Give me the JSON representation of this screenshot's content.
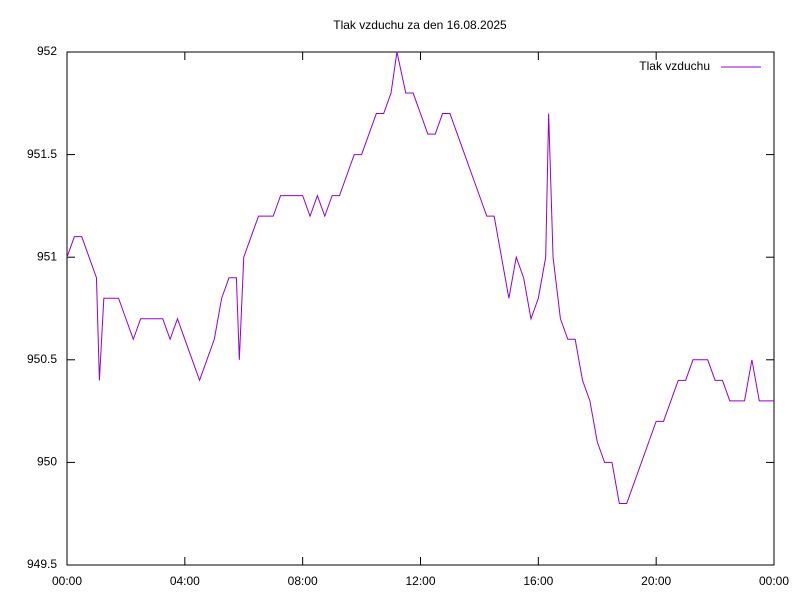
{
  "chart_data": {
    "type": "line",
    "title": "Tlak vzduchu za den 16.08.2025",
    "x": [
      0,
      0.25,
      0.5,
      0.75,
      1.0,
      1.1,
      1.25,
      1.5,
      1.75,
      2.0,
      2.25,
      2.5,
      2.75,
      3.0,
      3.25,
      3.5,
      3.75,
      4.0,
      4.25,
      4.5,
      4.75,
      5.0,
      5.25,
      5.5,
      5.75,
      5.85,
      6.0,
      6.25,
      6.5,
      6.75,
      7.0,
      7.25,
      7.5,
      7.75,
      8.0,
      8.25,
      8.5,
      8.75,
      9.0,
      9.25,
      9.5,
      9.75,
      10.0,
      10.25,
      10.5,
      10.75,
      11.0,
      11.2,
      11.5,
      11.75,
      12.0,
      12.25,
      12.5,
      12.75,
      13.0,
      13.25,
      13.5,
      13.75,
      14.0,
      14.25,
      14.5,
      14.75,
      15.0,
      15.25,
      15.5,
      15.75,
      16.0,
      16.25,
      16.35,
      16.5,
      16.75,
      17.0,
      17.25,
      17.5,
      17.75,
      18.0,
      18.25,
      18.5,
      18.75,
      19.0,
      19.25,
      19.5,
      19.75,
      20.0,
      20.25,
      20.5,
      20.75,
      21.0,
      21.25,
      21.5,
      21.75,
      22.0,
      22.25,
      22.5,
      22.75,
      23.0,
      23.25,
      23.5,
      23.75,
      24.0
    ],
    "series": [
      {
        "name": "Tlak vzduchu",
        "color": "#9400d3",
        "values": [
          951.0,
          951.1,
          951.1,
          951.0,
          950.9,
          950.4,
          950.8,
          950.8,
          950.8,
          950.7,
          950.6,
          950.7,
          950.7,
          950.7,
          950.7,
          950.6,
          950.7,
          950.6,
          950.5,
          950.4,
          950.5,
          950.6,
          950.8,
          950.9,
          950.9,
          950.5,
          951.0,
          951.1,
          951.2,
          951.2,
          951.2,
          951.3,
          951.3,
          951.3,
          951.3,
          951.2,
          951.3,
          951.2,
          951.3,
          951.3,
          951.4,
          951.5,
          951.5,
          951.6,
          951.7,
          951.7,
          951.8,
          952.0,
          951.8,
          951.8,
          951.7,
          951.6,
          951.6,
          951.7,
          951.7,
          951.6,
          951.5,
          951.4,
          951.3,
          951.2,
          951.2,
          951.0,
          950.8,
          951.0,
          950.9,
          950.7,
          950.8,
          951.0,
          951.7,
          951.0,
          950.7,
          950.6,
          950.6,
          950.4,
          950.3,
          950.1,
          950.0,
          950.0,
          949.8,
          949.8,
          949.9,
          950.0,
          950.1,
          950.2,
          950.2,
          950.3,
          950.4,
          950.4,
          950.5,
          950.5,
          950.5,
          950.4,
          950.4,
          950.3,
          950.3,
          950.3,
          950.5,
          950.3,
          950.3,
          950.3
        ]
      }
    ],
    "xlim": [
      0,
      24
    ],
    "xticks": [
      {
        "value": 0,
        "label": "00:00"
      },
      {
        "value": 4,
        "label": "04:00"
      },
      {
        "value": 8,
        "label": "08:00"
      },
      {
        "value": 12,
        "label": "12:00"
      },
      {
        "value": 16,
        "label": "16:00"
      },
      {
        "value": 20,
        "label": "20:00"
      },
      {
        "value": 24,
        "label": "00:00"
      }
    ],
    "ylim": [
      949.5,
      952
    ],
    "yticks": [
      949.5,
      950,
      950.5,
      951,
      951.5,
      952
    ],
    "legend": "top right"
  }
}
